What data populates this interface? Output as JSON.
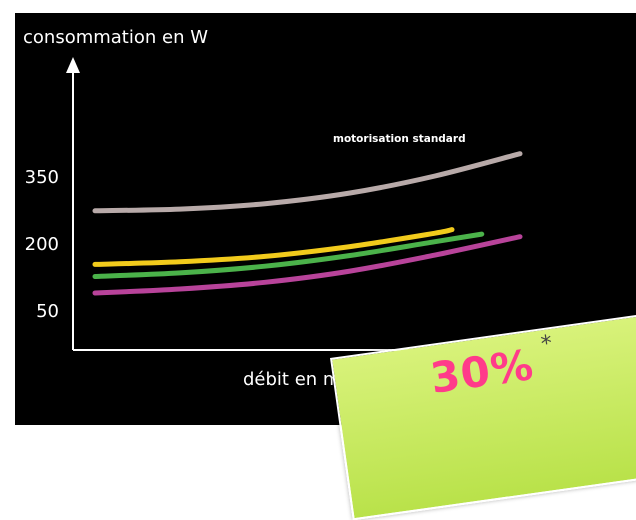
{
  "chart_data": {
    "type": "line",
    "title": "",
    "ylabel": "consommation en W",
    "xlabel": "débit en m3/h",
    "y_ticks": [
      350,
      200,
      50
    ],
    "ylim": [
      0,
      450
    ],
    "xlim": [
      0,
      100
    ],
    "grid": false,
    "legend": "none",
    "annotations": [
      {
        "text": "motorisation standard",
        "series_index": 0
      }
    ],
    "series": [
      {
        "name": "motorisation standard",
        "color": "#b8aaa9",
        "x": [
          0,
          20,
          40,
          60,
          80,
          100
        ],
        "y": [
          272,
          276,
          288,
          312,
          350,
          400
        ]
      },
      {
        "color": "#f2cb1c",
        "x": [
          0,
          20,
          40,
          60,
          80,
          84
        ],
        "y": [
          152,
          158,
          170,
          192,
          222,
          230
        ]
      },
      {
        "color": "#4bb24a",
        "x": [
          0,
          20,
          40,
          60,
          80,
          91
        ],
        "y": [
          125,
          133,
          148,
          172,
          203,
          220
        ]
      },
      {
        "color": "#b8439a",
        "x": [
          0,
          20,
          40,
          60,
          80,
          100
        ],
        "y": [
          88,
          97,
          112,
          137,
          173,
          214
        ]
      }
    ]
  },
  "promo": {
    "text": "30%",
    "note": "*",
    "bg_color": "#c4e85a",
    "text_color": "#ff3b8a"
  }
}
